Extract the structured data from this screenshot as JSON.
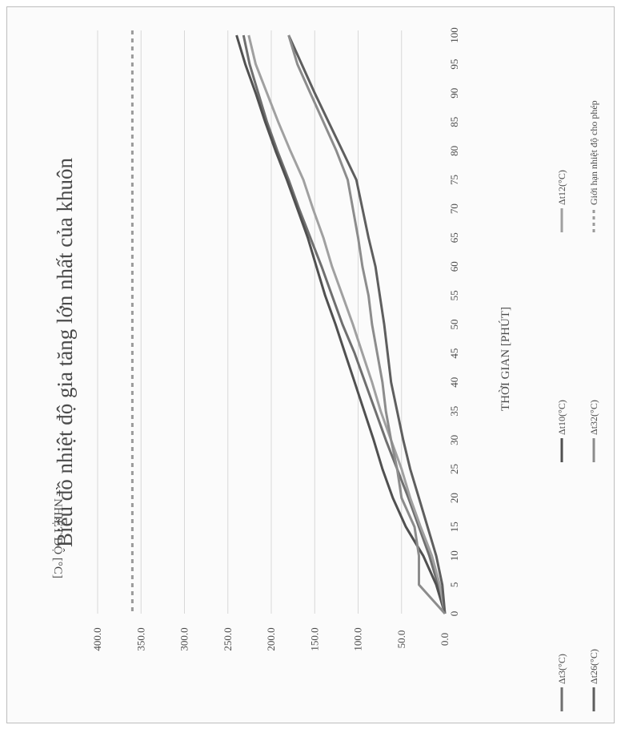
{
  "chart_data": {
    "type": "line",
    "orientation": "rotated-90-clockwise",
    "title": "Biểu đồ nhiệt độ gia tăng lớn nhất của khuôn",
    "xlabel": "THỜI GIAN [PHÚT]",
    "ylabel": "NHIỆT ĐỘ [°C]",
    "xlim": [
      0,
      100
    ],
    "ylim": [
      0,
      400
    ],
    "x_ticks": [
      "0",
      "5",
      "10",
      "15",
      "20",
      "25",
      "30",
      "35",
      "40",
      "45",
      "50",
      "55",
      "60",
      "65",
      "70",
      "75",
      "80",
      "85",
      "90",
      "95",
      "100"
    ],
    "y_ticks": [
      "0.0",
      "50.0",
      "100.0",
      "150.0",
      "200.0",
      "250.0",
      "300.0",
      "350.0",
      "400.0"
    ],
    "grid": true,
    "legend_position": "bottom",
    "limit_line": {
      "name": "Giới hạn nhiệt độ cho phép",
      "value": 360,
      "color": "#9a9a9a"
    },
    "series": [
      {
        "name": "Δt3(°C)",
        "color": "#6f6f6f",
        "x": [
          0,
          5,
          10,
          15,
          20,
          25,
          30,
          35,
          40,
          45,
          50,
          55,
          60,
          65,
          70,
          75,
          80,
          85,
          90,
          95,
          100
        ],
        "y": [
          0,
          8,
          18,
          30,
          42,
          55,
          68,
          80,
          92,
          104,
          118,
          130,
          142,
          155,
          168,
          180,
          193,
          205,
          215,
          225,
          232
        ]
      },
      {
        "name": "Δt10(°C)",
        "color": "#505050",
        "x": [
          0,
          5,
          10,
          15,
          20,
          25,
          30,
          35,
          40,
          45,
          50,
          55,
          60,
          65,
          70,
          75,
          80,
          85,
          90,
          95,
          100
        ],
        "y": [
          0,
          10,
          25,
          45,
          60,
          72,
          82,
          93,
          104,
          115,
          126,
          138,
          148,
          158,
          170,
          182,
          195,
          207,
          218,
          230,
          240
        ]
      },
      {
        "name": "Δt12(°C)",
        "color": "#a0a0a0",
        "x": [
          0,
          5,
          10,
          15,
          20,
          25,
          30,
          35,
          40,
          45,
          50,
          55,
          60,
          65,
          70,
          75,
          80,
          85,
          90,
          95,
          100
        ],
        "y": [
          0,
          6,
          15,
          28,
          40,
          50,
          62,
          74,
          84,
          95,
          106,
          118,
          130,
          140,
          152,
          163,
          178,
          192,
          205,
          218,
          226
        ]
      },
      {
        "name": "Δt26(°C)",
        "color": "#5e5e5e",
        "x": [
          0,
          5,
          10,
          15,
          20,
          25,
          30,
          35,
          40,
          45,
          50,
          55,
          60,
          65,
          70,
          75,
          80,
          85,
          90,
          95,
          100
        ],
        "y": [
          0,
          3,
          10,
          20,
          30,
          40,
          48,
          55,
          62,
          66,
          70,
          75,
          80,
          88,
          95,
          102,
          118,
          134,
          150,
          165,
          180
        ]
      },
      {
        "name": "Δt32(°C)",
        "color": "#8c8c8c",
        "x": [
          0,
          5,
          10,
          15,
          20,
          25,
          30,
          35,
          40,
          45,
          50,
          55,
          60,
          65,
          70,
          75,
          80,
          85,
          90,
          95,
          100
        ],
        "y": [
          0,
          30,
          30,
          35,
          50,
          55,
          62,
          68,
          72,
          78,
          84,
          88,
          95,
          100,
          106,
          112,
          125,
          140,
          155,
          170,
          180
        ]
      }
    ]
  }
}
